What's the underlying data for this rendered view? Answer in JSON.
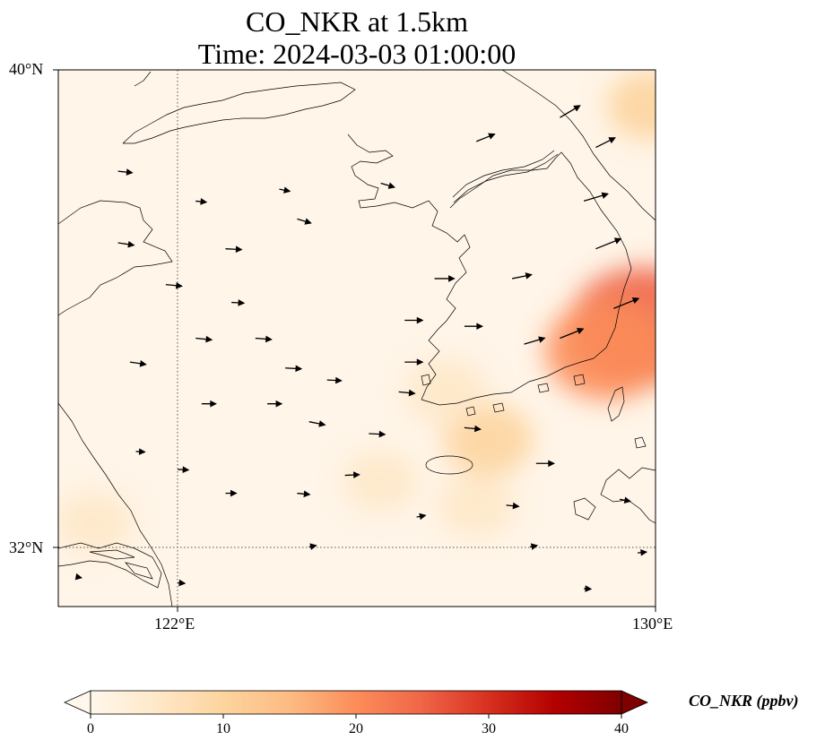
{
  "title_line1": "CO_NKR at 1.5km",
  "title_line2": "Time: 2024-03-03 01:00:00",
  "map": {
    "extent": {
      "lon": [
        120.0,
        130.0
      ],
      "lat": [
        31.0,
        40.0
      ]
    },
    "lon_ticks": [
      {
        "value": 122,
        "label": "122°E"
      },
      {
        "value": 130,
        "label": "130°E"
      }
    ],
    "lat_ticks": [
      {
        "value": 40,
        "label": "40°N"
      },
      {
        "value": 32,
        "label": "32°N"
      }
    ],
    "gridlines": "dotted at 122°E and 32°N",
    "features": [
      "coastlines",
      "wind vectors",
      "concentration field"
    ]
  },
  "colorbar": {
    "label": "CO_NKR (ppbv)",
    "range": [
      0,
      40
    ],
    "ticks": [
      "0",
      "10",
      "20",
      "30",
      "40"
    ],
    "colormap": "OrRd",
    "extend": "both",
    "colors": [
      "#fff7ec",
      "#fee8c8",
      "#fdd49e",
      "#fdbb84",
      "#fc8d59",
      "#ef6548",
      "#d7301f",
      "#b30000",
      "#7f0000"
    ]
  },
  "chart_data": {
    "type": "heatmap",
    "variable": "CO_NKR",
    "units": "ppbv",
    "level": "1.5km",
    "time": "2024-03-03 01:00:00",
    "hotspots": [
      {
        "lon": 129.8,
        "lat": 35.7,
        "value": 24
      },
      {
        "lon": 129.2,
        "lat": 35.3,
        "value": 18
      },
      {
        "lon": 129.9,
        "lat": 39.4,
        "value": 8
      },
      {
        "lon": 127.2,
        "lat": 33.8,
        "value": 9
      },
      {
        "lon": 126.5,
        "lat": 34.6,
        "value": 7
      },
      {
        "lon": 127.0,
        "lat": 32.7,
        "value": 6
      },
      {
        "lon": 120.6,
        "lat": 32.4,
        "value": 6
      },
      {
        "lon": 125.4,
        "lat": 33.1,
        "value": 5
      }
    ],
    "background_value": 2,
    "wind_vectors": "predominantly westerly, stronger over the Korean peninsula"
  }
}
